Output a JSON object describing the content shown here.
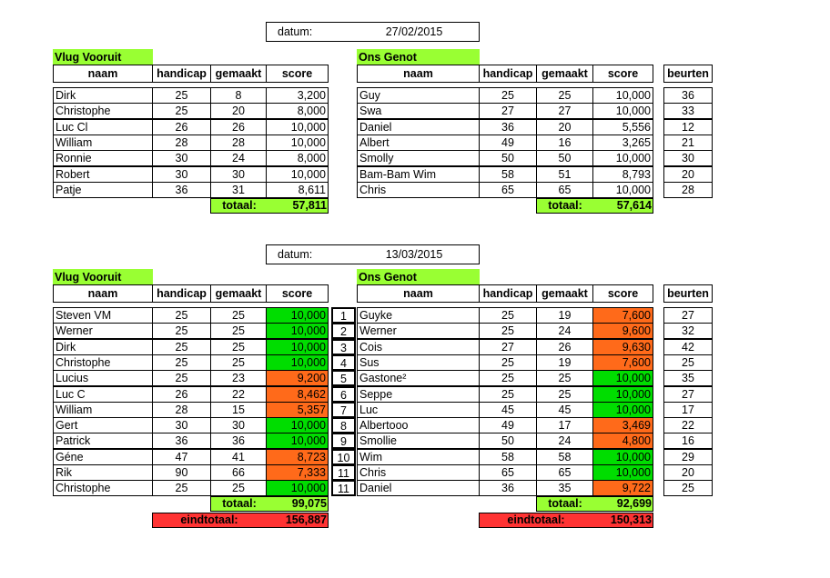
{
  "match1": {
    "datum_label": "datum:",
    "datum_value": "27/02/2015",
    "home": {
      "team": "Vlug Vooruit",
      "headers": [
        "naam",
        "handicap",
        "gemaakt",
        "score"
      ],
      "rows": [
        {
          "naam": "Dirk",
          "handicap": "25",
          "gemaakt": "8",
          "score": "3,200"
        },
        {
          "naam": "Christophe",
          "handicap": "25",
          "gemaakt": "20",
          "score": "8,000"
        },
        {
          "naam": "Luc Cl",
          "handicap": "26",
          "gemaakt": "26",
          "score": "10,000"
        },
        {
          "naam": "William",
          "handicap": "28",
          "gemaakt": "28",
          "score": "10,000"
        },
        {
          "naam": "Ronnie",
          "handicap": "30",
          "gemaakt": "24",
          "score": "8,000"
        },
        {
          "naam": "Robert",
          "handicap": "30",
          "gemaakt": "30",
          "score": "10,000"
        },
        {
          "naam": "Patje",
          "handicap": "36",
          "gemaakt": "31",
          "score": "8,611"
        }
      ],
      "totaal_label": "totaal:",
      "totaal_value": "57,811"
    },
    "away": {
      "team": "Ons Genot",
      "headers": [
        "naam",
        "handicap",
        "gemaakt",
        "score",
        "beurten"
      ],
      "rows": [
        {
          "naam": "Guy",
          "handicap": "25",
          "gemaakt": "25",
          "score": "10,000",
          "beurten": "36"
        },
        {
          "naam": "Swa",
          "handicap": "27",
          "gemaakt": "27",
          "score": "10,000",
          "beurten": "33"
        },
        {
          "naam": "Daniel",
          "handicap": "36",
          "gemaakt": "20",
          "score": "5,556",
          "beurten": "12"
        },
        {
          "naam": "Albert",
          "handicap": "49",
          "gemaakt": "16",
          "score": "3,265",
          "beurten": "21"
        },
        {
          "naam": "Smolly",
          "handicap": "50",
          "gemaakt": "50",
          "score": "10,000",
          "beurten": "30"
        },
        {
          "naam": "Bam-Bam Wim",
          "handicap": "58",
          "gemaakt": "51",
          "score": "8,793",
          "beurten": "20"
        },
        {
          "naam": "Chris",
          "handicap": "65",
          "gemaakt": "65",
          "score": "10,000",
          "beurten": "28"
        }
      ],
      "totaal_label": "totaal:",
      "totaal_value": "57,614"
    }
  },
  "match2": {
    "datum_label": "datum:",
    "datum_value": "13/03/2015",
    "home": {
      "team": "Vlug Vooruit",
      "headers": [
        "naam",
        "handicap",
        "gemaakt",
        "score"
      ],
      "rows": [
        {
          "naam": "Steven VM",
          "handicap": "25",
          "gemaakt": "25",
          "score": "10,000",
          "color": "green"
        },
        {
          "naam": "Werner",
          "handicap": "25",
          "gemaakt": "25",
          "score": "10,000",
          "color": "green"
        },
        {
          "naam": "Dirk",
          "handicap": "25",
          "gemaakt": "25",
          "score": "10,000",
          "color": "green"
        },
        {
          "naam": "Christophe",
          "handicap": "25",
          "gemaakt": "25",
          "score": "10,000",
          "color": "green"
        },
        {
          "naam": "Lucius",
          "handicap": "25",
          "gemaakt": "23",
          "score": "9,200",
          "color": "orange"
        },
        {
          "naam": "Luc C",
          "handicap": "26",
          "gemaakt": "22",
          "score": "8,462",
          "color": "orange"
        },
        {
          "naam": "William",
          "handicap": "28",
          "gemaakt": "15",
          "score": "5,357",
          "color": "orange"
        },
        {
          "naam": "Gert",
          "handicap": "30",
          "gemaakt": "30",
          "score": "10,000",
          "color": "green"
        },
        {
          "naam": "Patrick",
          "handicap": "36",
          "gemaakt": "36",
          "score": "10,000",
          "color": "green"
        },
        {
          "naam": "Géne",
          "handicap": "47",
          "gemaakt": "41",
          "score": "8,723",
          "color": "orange"
        },
        {
          "naam": "Rik",
          "handicap": "90",
          "gemaakt": "66",
          "score": "7,333",
          "color": "orange"
        },
        {
          "naam": "Christophe",
          "handicap": "25",
          "gemaakt": "25",
          "score": "10,000",
          "color": "green"
        }
      ],
      "totaal_label": "totaal:",
      "totaal_value": "99,075",
      "eindtotaal_label": "eindtotaal:",
      "eindtotaal_value": "156,887"
    },
    "numbers": [
      "1",
      "2",
      "3",
      "4",
      "5",
      "6",
      "7",
      "8",
      "9",
      "10",
      "11",
      "11"
    ],
    "away": {
      "team": "Ons Genot",
      "headers": [
        "naam",
        "handicap",
        "gemaakt",
        "score",
        "beurten"
      ],
      "rows": [
        {
          "naam": "Guyke",
          "handicap": "25",
          "gemaakt": "19",
          "score": "7,600",
          "beurten": "27",
          "color": "orange"
        },
        {
          "naam": "Werner",
          "handicap": "25",
          "gemaakt": "24",
          "score": "9,600",
          "beurten": "32",
          "color": "orange"
        },
        {
          "naam": "Cois",
          "handicap": "27",
          "gemaakt": "26",
          "score": "9,630",
          "beurten": "42",
          "color": "orange"
        },
        {
          "naam": "Sus",
          "handicap": "25",
          "gemaakt": "19",
          "score": "7,600",
          "beurten": "25",
          "color": "orange"
        },
        {
          "naam": "Gastone²",
          "handicap": "25",
          "gemaakt": "25",
          "score": "10,000",
          "beurten": "35",
          "color": "green"
        },
        {
          "naam": "Seppe",
          "handicap": "25",
          "gemaakt": "25",
          "score": "10,000",
          "beurten": "27",
          "color": "green"
        },
        {
          "naam": "Luc",
          "handicap": "45",
          "gemaakt": "45",
          "score": "10,000",
          "beurten": "17",
          "color": "green"
        },
        {
          "naam": "Albertooo",
          "handicap": "49",
          "gemaakt": "17",
          "score": "3,469",
          "beurten": "22",
          "color": "orange"
        },
        {
          "naam": "Smollie",
          "handicap": "50",
          "gemaakt": "24",
          "score": "4,800",
          "beurten": "16",
          "color": "orange"
        },
        {
          "naam": "Wim",
          "handicap": "58",
          "gemaakt": "58",
          "score": "10,000",
          "beurten": "29",
          "color": "green"
        },
        {
          "naam": "Chris",
          "handicap": "65",
          "gemaakt": "65",
          "score": "10,000",
          "beurten": "20",
          "color": "green"
        },
        {
          "naam": "Daniel",
          "handicap": "36",
          "gemaakt": "35",
          "score": "9,722",
          "beurten": "25",
          "color": "orange"
        }
      ],
      "totaal_label": "totaal:",
      "totaal_value": "92,699",
      "eindtotaal_label": "eindtotaal:",
      "eindtotaal_value": "150,313"
    }
  }
}
